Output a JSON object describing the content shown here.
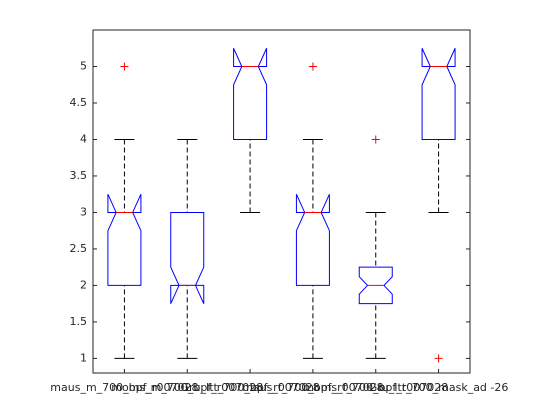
{
  "chart_data": {
    "type": "box",
    "categories": [
      "maus_m_700_bpf_r007028",
      "moms_m_700_bpf_r007028",
      "Gru_Itt_700_bpf_r007028",
      "maus_f_700_bpf_r007028",
      "moms_f_700_bpf_r007028",
      "Gru_Itt_700_mask_ad -26"
    ],
    "ylim": [
      0.8,
      5.5
    ],
    "yticks": [
      1,
      1.5,
      2,
      2.5,
      3,
      3.5,
      4,
      4.5,
      5
    ],
    "box_color": "#0000ff",
    "median_color": "#ff0000",
    "whisker_color": "#000000",
    "outlier_color": "#ff0000",
    "boxes": [
      {
        "whisker_low": 1,
        "q1": 2,
        "median": 3,
        "q3": 3,
        "whisker_high": 4,
        "notch_low": 2.75,
        "notch_high": 3.25,
        "outliers": [
          5
        ]
      },
      {
        "whisker_low": 1,
        "q1": 2,
        "median": 2,
        "q3": 3,
        "whisker_high": 4,
        "notch_low": 1.75,
        "notch_high": 2.25,
        "outliers": []
      },
      {
        "whisker_low": 3,
        "q1": 4,
        "median": 5,
        "q3": 5,
        "whisker_high": 5,
        "notch_low": 4.75,
        "notch_high": 5.25,
        "outliers": []
      },
      {
        "whisker_low": 1,
        "q1": 2,
        "median": 3,
        "q3": 3,
        "whisker_high": 4,
        "notch_low": 2.75,
        "notch_high": 3.25,
        "outliers": [
          5
        ]
      },
      {
        "whisker_low": 1,
        "q1": 1.75,
        "median": 2,
        "q3": 2.25,
        "whisker_high": 3,
        "notch_low": 1.88,
        "notch_high": 2.12,
        "outliers": [
          4
        ]
      },
      {
        "whisker_low": 3,
        "q1": 4,
        "median": 5,
        "q3": 5,
        "whisker_high": 5,
        "notch_low": 4.75,
        "notch_high": 5.25,
        "outliers": [
          1
        ]
      }
    ]
  }
}
